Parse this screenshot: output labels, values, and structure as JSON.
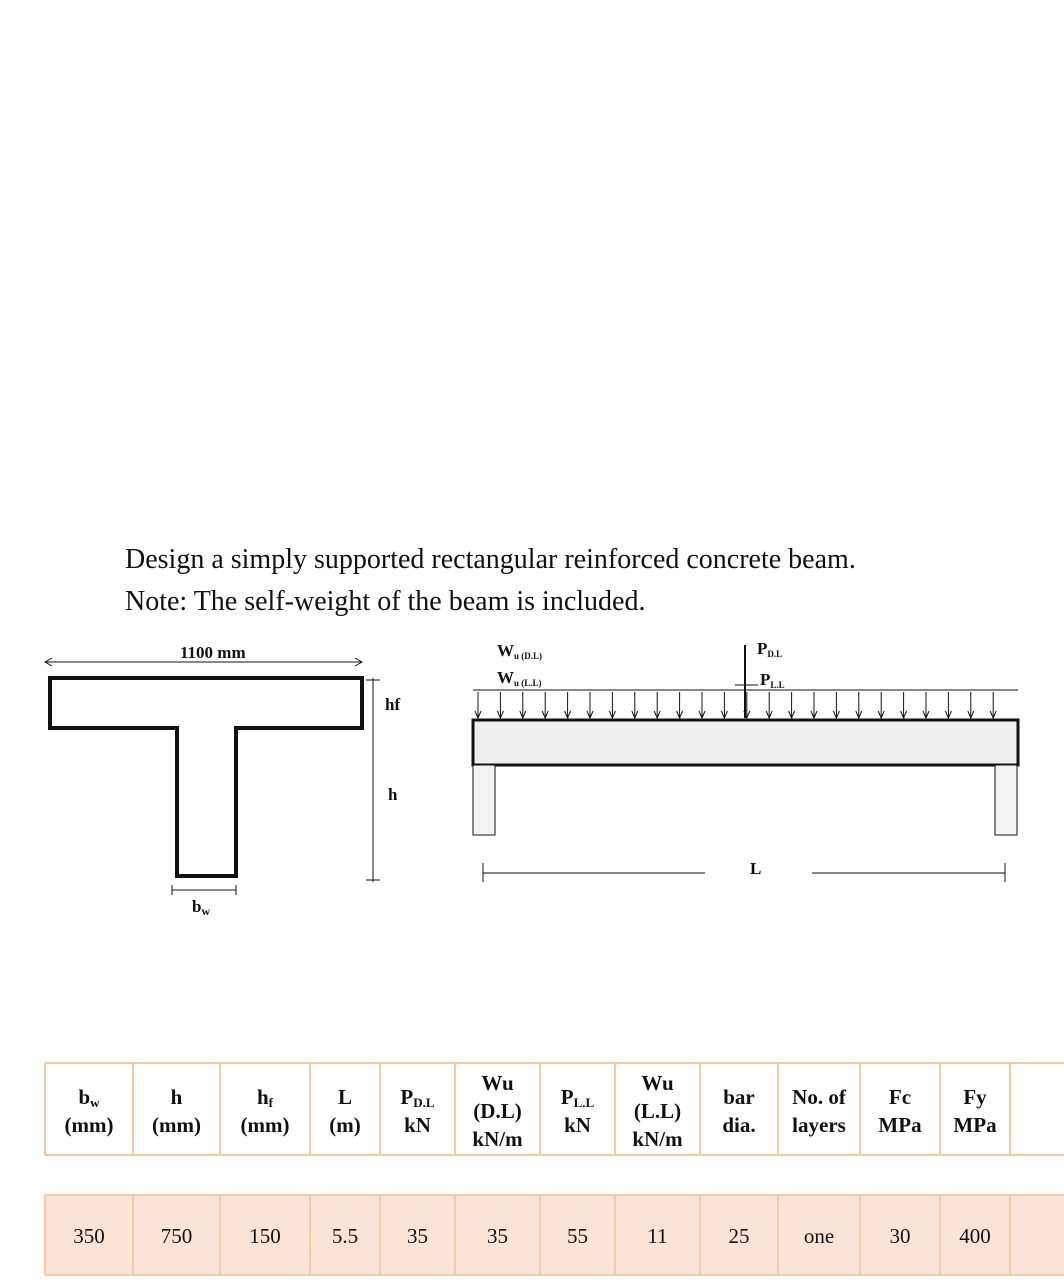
{
  "problem": {
    "line1": "Design a simply supported rectangular reinforced concrete beam.",
    "line2": "Note: The self-weight of the beam is included."
  },
  "diagram": {
    "flange_width": "1100 mm",
    "hf": "hf",
    "h": "h",
    "bw": {
      "name": "b",
      "sub": "w"
    },
    "wu_dl": {
      "name": "W",
      "sub": "u (D.L)"
    },
    "wu_ll": {
      "name": "W",
      "sub": "u (L.L)"
    },
    "p_dl": {
      "name": "P",
      "sub": "D.L"
    },
    "p_ll": {
      "name": "P",
      "sub": "L.L"
    },
    "span": "L"
  },
  "table": {
    "headers": [
      {
        "name": "b",
        "sub": "w",
        "unit": "(mm)"
      },
      {
        "name": "h",
        "unit": "(mm)"
      },
      {
        "name": "h",
        "sub": "f",
        "unit": "(mm)"
      },
      {
        "name": "L",
        "unit": "(m)"
      },
      {
        "name": "P",
        "sub": "D.L",
        "unit": "kN"
      },
      {
        "name": "Wu",
        "sub": "(D.L)",
        "unit": "kN/m"
      },
      {
        "name": "P",
        "sub": "L.L",
        "unit": "kN"
      },
      {
        "name": "Wu",
        "sub": "(L.L)",
        "unit": "kN/m"
      },
      {
        "name": "bar",
        "unit": "dia."
      },
      {
        "name": "No. of",
        "unit": "layers"
      },
      {
        "name": "Fc",
        "unit": "MPa"
      },
      {
        "name": "Fy",
        "unit": "MPa"
      }
    ],
    "rows": [
      [
        350,
        750,
        150,
        5.5,
        35,
        35,
        55,
        11,
        25,
        "one",
        30,
        400
      ]
    ]
  }
}
